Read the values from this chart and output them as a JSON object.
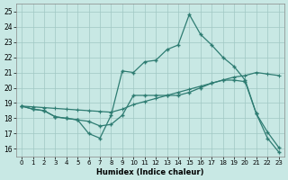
{
  "xlabel": "Humidex (Indice chaleur)",
  "xlim": [
    -0.5,
    23.5
  ],
  "ylim": [
    15.5,
    25.5
  ],
  "yticks": [
    16,
    17,
    18,
    19,
    20,
    21,
    22,
    23,
    24,
    25
  ],
  "xticks": [
    0,
    1,
    2,
    3,
    4,
    5,
    6,
    7,
    8,
    9,
    10,
    11,
    12,
    13,
    14,
    15,
    16,
    17,
    18,
    19,
    20,
    21,
    22,
    23
  ],
  "background_color": "#c8e8e4",
  "grid_color": "#a0c8c4",
  "line_color": "#2e7c72",
  "line1_y": [
    18.8,
    18.6,
    18.5,
    18.1,
    18.0,
    17.9,
    17.0,
    16.7,
    18.2,
    21.1,
    21.0,
    21.7,
    21.8,
    22.5,
    22.8,
    24.8,
    23.5,
    22.8,
    22.0,
    21.4,
    20.5,
    18.3,
    16.7,
    15.8
  ],
  "line2_y": [
    18.8,
    18.6,
    18.5,
    18.1,
    18.0,
    17.9,
    17.8,
    17.5,
    17.6,
    18.2,
    19.5,
    19.5,
    19.5,
    19.5,
    19.5,
    19.7,
    20.0,
    20.3,
    20.5,
    20.5,
    20.4,
    18.3,
    17.1,
    16.1
  ],
  "line3_y": [
    18.8,
    18.75,
    18.7,
    18.65,
    18.6,
    18.55,
    18.5,
    18.45,
    18.4,
    18.6,
    18.9,
    19.1,
    19.3,
    19.5,
    19.7,
    19.9,
    20.1,
    20.3,
    20.5,
    20.7,
    20.8,
    21.0,
    20.9,
    20.8
  ]
}
